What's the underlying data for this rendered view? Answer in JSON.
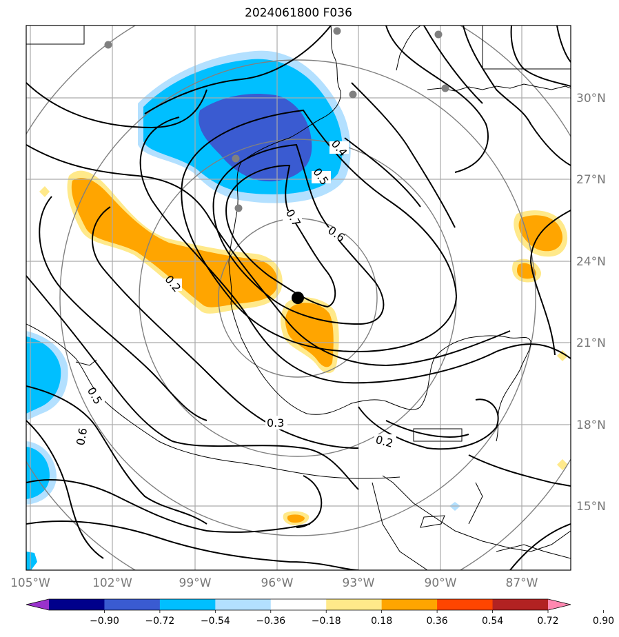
{
  "title": "2024061800 F036",
  "map": {
    "lon_labels": [
      "105°W",
      "102°W",
      "99°W",
      "96°W",
      "93°W",
      "90°W",
      "87°W"
    ],
    "lat_labels": [
      "30°N",
      "27°N",
      "24°N",
      "21°N",
      "18°N",
      "15°N"
    ],
    "contour_labels": [
      "0.4",
      "0.5",
      "0.7",
      "0.6",
      "0.2",
      "0.5",
      "0.6",
      "0.3",
      "0.2"
    ],
    "center_marker": "black-dot"
  },
  "colorbar": {
    "ticks": [
      "−0.90",
      "−0.72",
      "−0.54",
      "−0.36",
      "−0.18",
      "0.18",
      "0.36",
      "0.54",
      "0.72",
      "0.90"
    ],
    "colors": [
      "#9932cc",
      "#00008b",
      "#3a5bd1",
      "#00bfff",
      "#b3e0ff",
      "#ffffff",
      "#ffe98a",
      "#ffa500",
      "#ff4500",
      "#b22222",
      "#ff88b0"
    ]
  }
}
